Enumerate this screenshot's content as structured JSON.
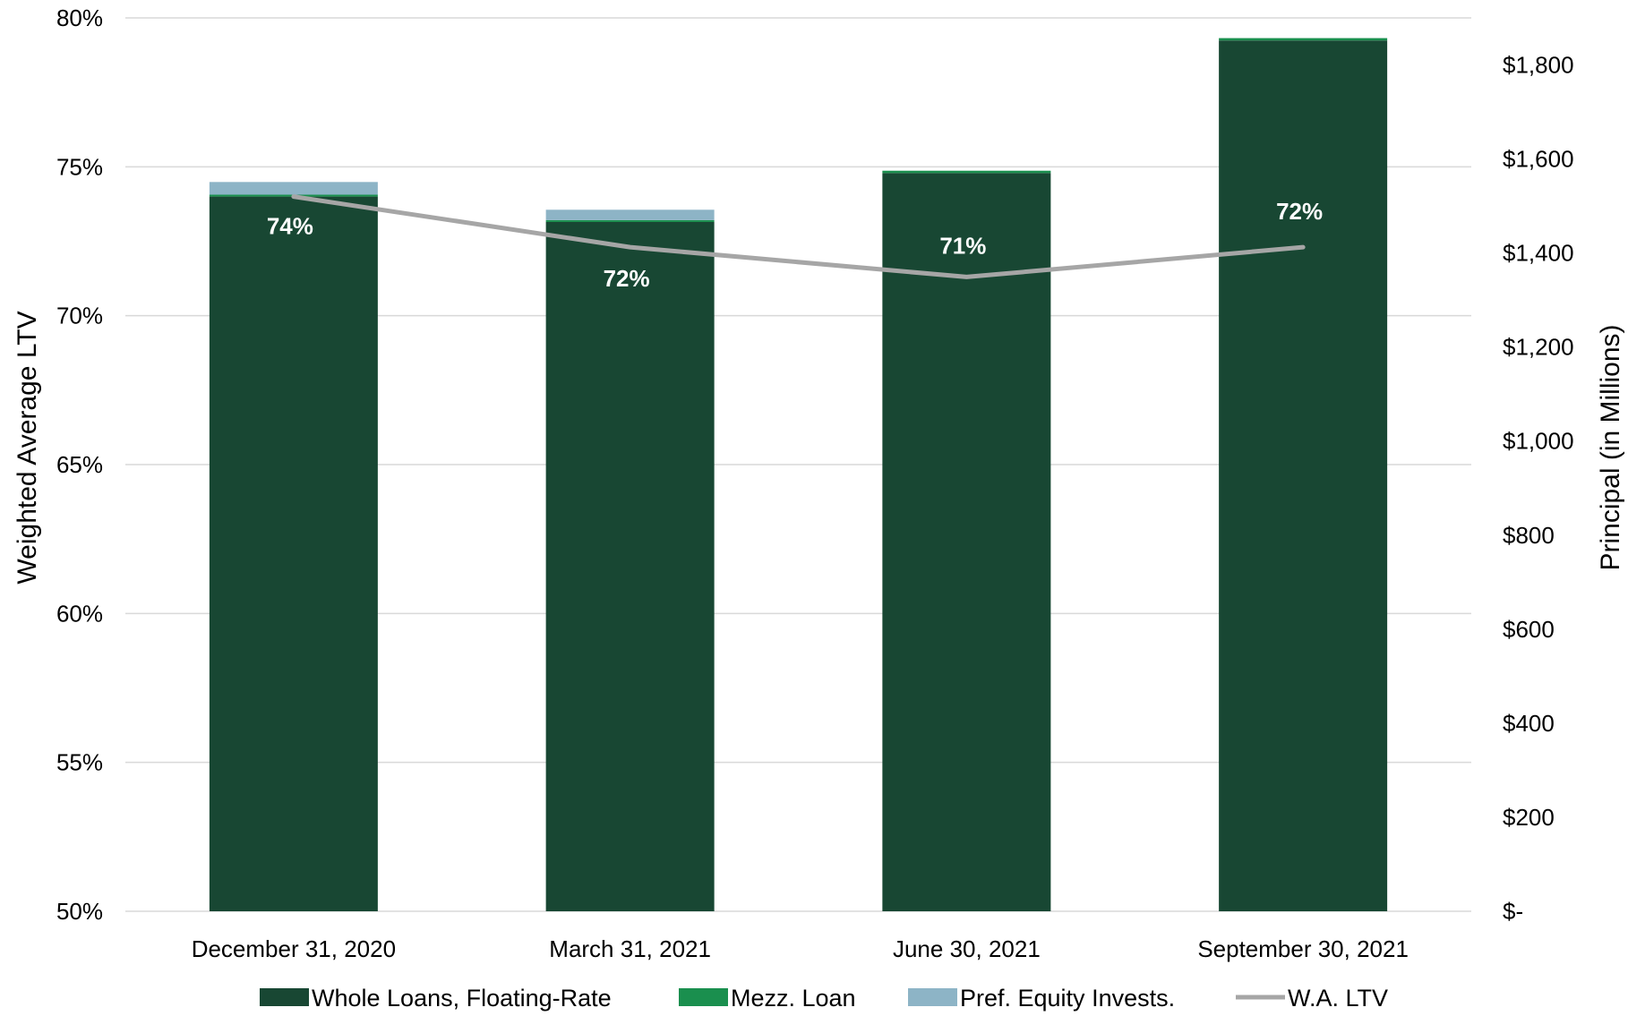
{
  "chart_data": {
    "type": "bar",
    "stacked": true,
    "categories": [
      "December 31, 2020",
      "March 31, 2021",
      "June 30, 2021",
      "September 30, 2021"
    ],
    "series": [
      {
        "name": "Whole Loans, Floating-Rate",
        "axis": "right",
        "color": "#184733",
        "values": [
          1520,
          1466,
          1570,
          1852
        ]
      },
      {
        "name": "Mezz. Loan",
        "axis": "right",
        "color": "#1a8f4e",
        "values": [
          4,
          4,
          5,
          5
        ]
      },
      {
        "name": "Pref. Equity Invests.",
        "axis": "right",
        "color": "#8db4c6",
        "values": [
          27,
          22,
          0,
          0
        ]
      }
    ],
    "line": {
      "name": "W.A. LTV",
      "axis": "left",
      "color": "#a6a6a6",
      "values": [
        74.0,
        72.3,
        71.3,
        72.3
      ],
      "labels": [
        "74%",
        "72%",
        "71%",
        "72%"
      ]
    },
    "y_left": {
      "label": "Weighted Average LTV",
      "ylim": [
        50,
        80
      ],
      "ticks": [
        "50%",
        "55%",
        "60%",
        "65%",
        "70%",
        "75%",
        "80%"
      ]
    },
    "y_right": {
      "label": "Principal (in Millions)",
      "ylim": [
        0,
        1900
      ],
      "ticks": [
        "$-",
        "$200",
        "$400",
        "$600",
        "$800",
        "$1,000",
        "$1,200",
        "$1,400",
        "$1,600",
        "$1,800"
      ]
    },
    "grid": true,
    "legend_position": "bottom"
  }
}
